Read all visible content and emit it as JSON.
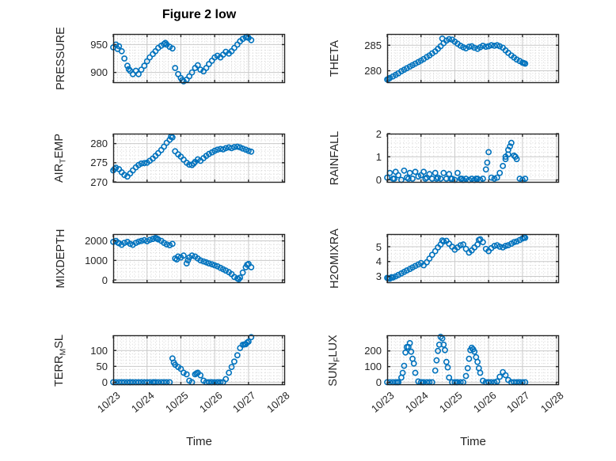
{
  "title": "Figure 2 low",
  "xlabel": "Time",
  "marker_color": "#0072BD",
  "axis_color": "#262626",
  "major_grid_color": "#c9c9c9",
  "minor_grid_color": "#d4d4d4",
  "chart_data": {
    "type": "scatter",
    "layout": "4x2 subplot grid, shared time axis",
    "xlabel": "Time",
    "xlim_days": [
      0,
      5.08
    ],
    "xticks_days": [
      0,
      1,
      2,
      3,
      4,
      5
    ],
    "xticklabels": [
      "10/23",
      "10/24",
      "10/25",
      "10/26",
      "10/27",
      "10/28"
    ],
    "grid": "major solid + dotted minor grid",
    "legend": "none",
    "x_days": [
      0,
      0.08,
      0.17,
      0.25,
      0.33,
      0.42,
      0.5,
      0.58,
      0.67,
      0.75,
      0.83,
      0.92,
      1,
      1.08,
      1.17,
      1.25,
      1.33,
      1.42,
      1.5,
      1.58,
      1.67,
      1.75,
      1.83,
      1.92,
      2,
      2.08,
      2.17,
      2.25,
      2.33,
      2.42,
      2.5,
      2.58,
      2.67,
      2.75,
      2.83,
      2.92,
      3,
      3.08,
      3.17,
      3.25,
      3.33,
      3.42,
      3.5,
      3.58,
      3.67,
      3.75,
      3.83,
      3.92,
      4,
      4.08
    ],
    "subplots": [
      {
        "name": "PRESSURE",
        "label": {
          "pre": "PRESSURE",
          "sub": "",
          "post": ""
        },
        "ylim": [
          881,
          969
        ],
        "yticks": [
          900,
          950
        ],
        "minor_y_step": 5,
        "y": [
          945,
          950,
          947,
          938,
          925,
          912,
          903,
          897,
          903,
          897,
          905,
          912,
          920,
          927,
          933,
          938,
          944,
          948,
          951,
          950,
          946,
          943,
          908,
          897,
          890,
          884,
          887,
          893,
          900,
          908,
          913,
          905,
          902,
          908,
          915,
          921,
          927,
          930,
          927,
          932,
          937,
          934,
          938,
          944,
          950,
          956,
          960,
          963,
          962,
          958
        ],
        "extra_points": [
          [
            0.13,
            942
          ],
          [
            0.46,
            906
          ],
          [
            1.54,
            953
          ],
          [
            2.04,
            886
          ],
          [
            3.96,
            964
          ]
        ]
      },
      {
        "name": "THETA",
        "label": {
          "pre": "THETA",
          "sub": "",
          "post": ""
        },
        "ylim": [
          277.6,
          287.2
        ],
        "yticks": [
          280,
          285
        ],
        "minor_y_step": 0.5,
        "y": [
          278.3,
          278.6,
          278.9,
          279.2,
          279.5,
          279.9,
          280.2,
          280.5,
          280.8,
          281.1,
          281.4,
          281.7,
          282.0,
          282.3,
          282.7,
          283.0,
          283.4,
          283.8,
          284.3,
          284.8,
          285.4,
          285.9,
          286.2,
          286.1,
          285.7,
          285.3,
          284.9,
          284.6,
          284.4,
          284.7,
          284.8,
          284.5,
          284.3,
          284.6,
          284.9,
          284.7,
          284.8,
          285.0,
          284.9,
          285.0,
          284.8,
          284.5,
          284.0,
          283.5,
          283.0,
          282.6,
          282.2,
          281.9,
          281.6,
          281.4
        ],
        "extra_points": [
          [
            0.04,
            278.4
          ],
          [
            1.63,
            286.3
          ],
          [
            4.04,
            281.5
          ]
        ]
      },
      {
        "name": "AIR_TEMP",
        "label": {
          "pre": "AIR",
          "sub": "T",
          "post": "EMP"
        },
        "ylim": [
          269.8,
          282.6
        ],
        "yticks": [
          270,
          275,
          280
        ],
        "minor_y_step": 1,
        "y": [
          273.0,
          273.7,
          273.3,
          272.5,
          271.8,
          271.4,
          272.2,
          273.0,
          273.8,
          274.4,
          274.8,
          274.9,
          275.0,
          275.5,
          276.1,
          276.8,
          277.5,
          278.3,
          279.2,
          280.2,
          281.0,
          281.6,
          278.0,
          277.2,
          276.6,
          275.8,
          275.0,
          274.5,
          274.4,
          275.2,
          275.9,
          275.5,
          276.2,
          276.8,
          277.3,
          277.7,
          278.1,
          278.4,
          278.6,
          278.5,
          278.8,
          279.0,
          278.8,
          279.1,
          279.2,
          279.0,
          278.7,
          278.4,
          278.1,
          277.9
        ],
        "extra_points": [
          [
            0.04,
            273.4
          ],
          [
            1.71,
            281.8
          ],
          [
            2.38,
            274.8
          ]
        ]
      },
      {
        "name": "RAINFALL",
        "label": {
          "pre": "RAINFALL",
          "sub": "",
          "post": ""
        },
        "ylim": [
          -0.12,
          2
        ],
        "yticks": [
          0,
          1,
          2
        ],
        "minor_y_step": 0.2,
        "y": [
          0.1,
          0.3,
          0.05,
          0.35,
          0.2,
          0,
          0.4,
          0.1,
          0.3,
          0.05,
          0.35,
          0.15,
          0.2,
          0.35,
          0.1,
          0.25,
          0.05,
          0.3,
          0.1,
          0.05,
          0.3,
          0.05,
          0.25,
          0.05,
          0,
          0.3,
          0.05,
          0,
          0.05,
          0,
          0.05,
          0,
          0.05,
          0,
          0.05,
          0.45,
          1.2,
          0.1,
          0.05,
          0.1,
          0.3,
          0.6,
          0.9,
          1.1,
          1.6,
          1.05,
          0.9,
          0.05,
          0,
          0.05
        ],
        "extra_points": [
          [
            2.96,
            0.75
          ],
          [
            3.5,
            1.0
          ],
          [
            3.58,
            1.3
          ],
          [
            3.63,
            1.45
          ],
          [
            3.79,
            1.0
          ],
          [
            0.21,
            0.05
          ],
          [
            0.63,
            0.05
          ],
          [
            1.13,
            0.05
          ],
          [
            1.46,
            0.05
          ],
          [
            1.88,
            0.05
          ],
          [
            2.21,
            0.05
          ],
          [
            2.63,
            0.05
          ]
        ]
      },
      {
        "name": "MIXDEPTH",
        "label": {
          "pre": "MIXDEPTH",
          "sub": "",
          "post": ""
        },
        "ylim": [
          -160,
          2350
        ],
        "yticks": [
          0,
          1000,
          2000
        ],
        "minor_y_step": 200,
        "y": [
          1950,
          2000,
          1880,
          1800,
          1900,
          1950,
          1850,
          1800,
          1900,
          1960,
          2000,
          2040,
          1980,
          2050,
          2100,
          2150,
          2080,
          2000,
          1900,
          1820,
          1780,
          1850,
          1100,
          1200,
          1150,
          1250,
          850,
          1150,
          1250,
          1200,
          1100,
          1000,
          950,
          900,
          850,
          800,
          750,
          700,
          620,
          550,
          480,
          400,
          300,
          150,
          80,
          120,
          380,
          650,
          820,
          650
        ],
        "extra_points": [
          [
            0.13,
            1920
          ],
          [
            1.29,
            2120
          ],
          [
            1.88,
            1050
          ],
          [
            2.21,
            1000
          ],
          [
            3.71,
            40
          ],
          [
            3.96,
            780
          ]
        ]
      },
      {
        "name": "H2OMIXRA",
        "label": {
          "pre": "H2OMIXRA",
          "sub": "",
          "post": ""
        },
        "ylim": [
          2.55,
          5.85
        ],
        "yticks": [
          3,
          4,
          5
        ],
        "minor_y_step": 0.25,
        "y": [
          2.9,
          2.85,
          2.92,
          3.0,
          3.1,
          3.2,
          3.3,
          3.4,
          3.5,
          3.6,
          3.7,
          3.8,
          3.9,
          3.75,
          3.95,
          4.2,
          4.45,
          4.7,
          4.95,
          5.15,
          5.35,
          5.4,
          5.2,
          5.0,
          4.8,
          4.95,
          5.1,
          5.15,
          4.85,
          4.6,
          4.75,
          4.95,
          5.15,
          5.5,
          5.3,
          4.85,
          4.7,
          4.9,
          5.05,
          5.1,
          5.0,
          4.95,
          5.05,
          5.1,
          5.2,
          5.3,
          5.35,
          5.45,
          5.55,
          5.6
        ],
        "extra_points": [
          [
            0.04,
            2.88
          ],
          [
            0.13,
            2.95
          ],
          [
            1.63,
            5.42
          ],
          [
            2.71,
            5.45
          ],
          [
            4.04,
            5.62
          ]
        ]
      },
      {
        "name": "TERR_MSL",
        "label": {
          "pre": "TERR",
          "sub": "M",
          "post": "SL"
        },
        "ylim": [
          -9,
          148
        ],
        "yticks": [
          0,
          50,
          100
        ],
        "minor_y_step": 10,
        "y": [
          0,
          0,
          0,
          0,
          0,
          0,
          0,
          0,
          0,
          0,
          0,
          0,
          0,
          0,
          0,
          0,
          0,
          0,
          0,
          0,
          0,
          75,
          55,
          48,
          42,
          30,
          25,
          5,
          0,
          25,
          30,
          22,
          5,
          0,
          0,
          0,
          0,
          0,
          0,
          0,
          10,
          30,
          48,
          65,
          85,
          108,
          118,
          120,
          128,
          142
        ],
        "extra_points": [
          [
            1.79,
            62
          ],
          [
            2.46,
            28
          ],
          [
            3.88,
            119
          ],
          [
            3.96,
            125
          ],
          [
            0.5,
            0
          ],
          [
            1.2,
            0
          ],
          [
            2.9,
            0
          ],
          [
            3.1,
            0
          ]
        ]
      },
      {
        "name": "SUN_FLUX",
        "label": {
          "pre": "SUN",
          "sub": "F",
          "post": "LUX"
        },
        "ylim": [
          -18,
          300
        ],
        "yticks": [
          0,
          100,
          200
        ],
        "minor_y_step": 20,
        "y": [
          0,
          0,
          0,
          0,
          0,
          30,
          105,
          225,
          250,
          150,
          60,
          5,
          0,
          0,
          0,
          0,
          0,
          75,
          200,
          290,
          240,
          130,
          30,
          0,
          0,
          0,
          0,
          0,
          40,
          150,
          220,
          195,
          130,
          60,
          10,
          0,
          0,
          0,
          0,
          5,
          35,
          65,
          45,
          15,
          0,
          0,
          0,
          0,
          0,
          0
        ],
        "extra_points": [
          [
            0.46,
            60
          ],
          [
            0.54,
            190
          ],
          [
            0.63,
            225
          ],
          [
            0.71,
            195
          ],
          [
            0.79,
            120
          ],
          [
            1.46,
            140
          ],
          [
            1.54,
            240
          ],
          [
            1.63,
            280
          ],
          [
            1.71,
            205
          ],
          [
            1.79,
            95
          ],
          [
            2.38,
            90
          ],
          [
            2.46,
            205
          ],
          [
            2.54,
            210
          ],
          [
            2.63,
            160
          ],
          [
            2.71,
            90
          ],
          [
            0.3,
            0
          ],
          [
            1.05,
            0
          ],
          [
            2.05,
            0
          ],
          [
            3.0,
            0
          ],
          [
            3.9,
            0
          ]
        ]
      }
    ]
  }
}
